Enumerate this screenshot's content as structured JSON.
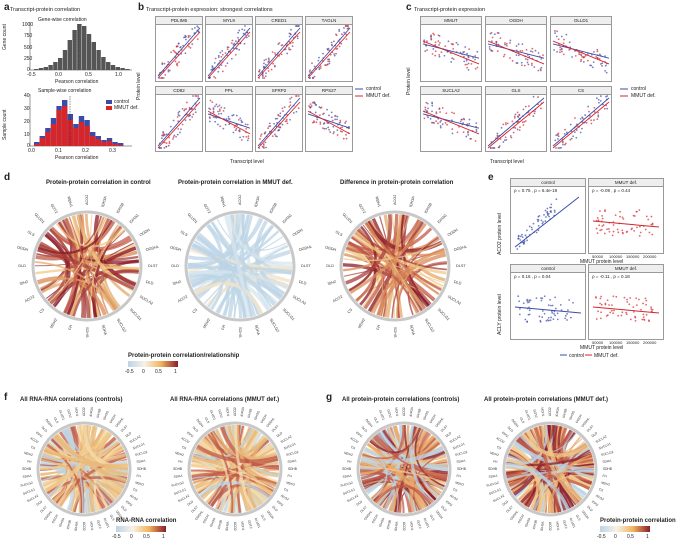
{
  "panels": {
    "a": {
      "label": "a",
      "title": "Transcript-protein correlation",
      "top_sub": "Gene-wise correlation",
      "top_ylabel": "Gene count",
      "top_xlabel": "Pearson correlation",
      "top_yticks": [
        "1000",
        "750",
        "500",
        "250",
        "0"
      ],
      "top_xticks": [
        "-0.5",
        "0.0",
        "0.5",
        "1.0"
      ],
      "bottom_sub": "Sample-wise correlation",
      "bottom_ylabel": "Sample count",
      "bottom_xlabel": "Pearson correlation",
      "bottom_yticks": [
        "40",
        "30",
        "20",
        "10",
        "0"
      ],
      "bottom_xticks": [
        "0.0",
        "0.1",
        "0.2",
        "0.3"
      ],
      "legend": [
        "control",
        "MMUT def."
      ]
    },
    "b": {
      "label": "b",
      "title": "Transcript-protein expression: strongest correlations",
      "ylabel": "Protein level",
      "xlabel": "Transcript level",
      "facets": [
        "PDLIM5",
        "MYL9",
        "CRED1",
        "TAGLN",
        "CD82",
        "PPL",
        "SFRP2",
        "RPS27"
      ],
      "legend": [
        "control",
        "MMUT def."
      ]
    },
    "c": {
      "label": "c",
      "title": "Transcript-protein expression",
      "ylabel": "Protein level",
      "xlabel": "Transcript level",
      "facets": [
        "MMUT",
        "OGDH",
        "OLLD1",
        "SUCLA2",
        "GLS",
        "CS"
      ],
      "legend": [
        "control",
        "MMUT def."
      ]
    },
    "d": {
      "label": "d",
      "titles": [
        "Protein-protein correlation in control",
        "Protein-protein correlation in MMUT def.",
        "Difference in protein-protein correlation"
      ],
      "legend_title": "Protein-protein correlation/relationship",
      "legend_ticks": [
        "-0.5",
        "0",
        "0.5",
        "1"
      ],
      "genes": [
        "ACO2",
        "IDH3A",
        "IDH3B",
        "IDH3G",
        "OGDH",
        "OGDHL",
        "DLST",
        "DLD",
        "SUCLA2",
        "SUCLG1",
        "SUCLG2",
        "SDHA",
        "SDHB",
        "FH",
        "MDH2",
        "CS",
        "ACO2",
        "IDH2",
        "DLD",
        "OGDH",
        "GLS",
        "GLUD1",
        "GOT2",
        "MDH1"
      ]
    },
    "e": {
      "label": "e",
      "top_facets": [
        "control",
        "MMUT def."
      ],
      "top_ylabel": "ACO2 protein level",
      "top_xlabel": "MMUT protein level",
      "top_stats": [
        "ρ = 0.75 , p = 6.4e-19",
        "ρ = -0.09 , p = 0.44"
      ],
      "bottom_facets": [
        "control",
        "MMUT def."
      ],
      "bottom_ylabel": "ACLY protein level",
      "bottom_xlabel": "MMUT protein level",
      "bottom_stats": [
        "ρ = 0.16 , p = 0.04",
        "ρ = -0.11 , p = 0.18"
      ],
      "xticks": [
        "50000",
        "100000",
        "150000",
        "200000"
      ],
      "legend": [
        "control",
        "MMUT def."
      ]
    },
    "f": {
      "label": "f",
      "titles": [
        "All RNA-RNA correlations (controls)",
        "All RNA-RNA correlations (MMUT def.)"
      ],
      "legend_title": "RNA-RNA correlation",
      "legend_ticks": [
        "-0.5",
        "0",
        "0.5",
        "1"
      ]
    },
    "g": {
      "label": "g",
      "titles": [
        "All protein-protein correlations (controls)",
        "All protein-protein correlations (MMUT def.)"
      ],
      "legend_title": "Protein-protein correlation",
      "legend_ticks": [
        "-0.5",
        "0",
        "0.5",
        "1"
      ]
    }
  },
  "colors": {
    "control": "#3b4ba8",
    "mmut": "#d4262b",
    "histo": "#555555",
    "chord_warm": "#c15a48",
    "chord_light": "#f2c98a",
    "chord_blue": "#bcd4e6"
  }
}
